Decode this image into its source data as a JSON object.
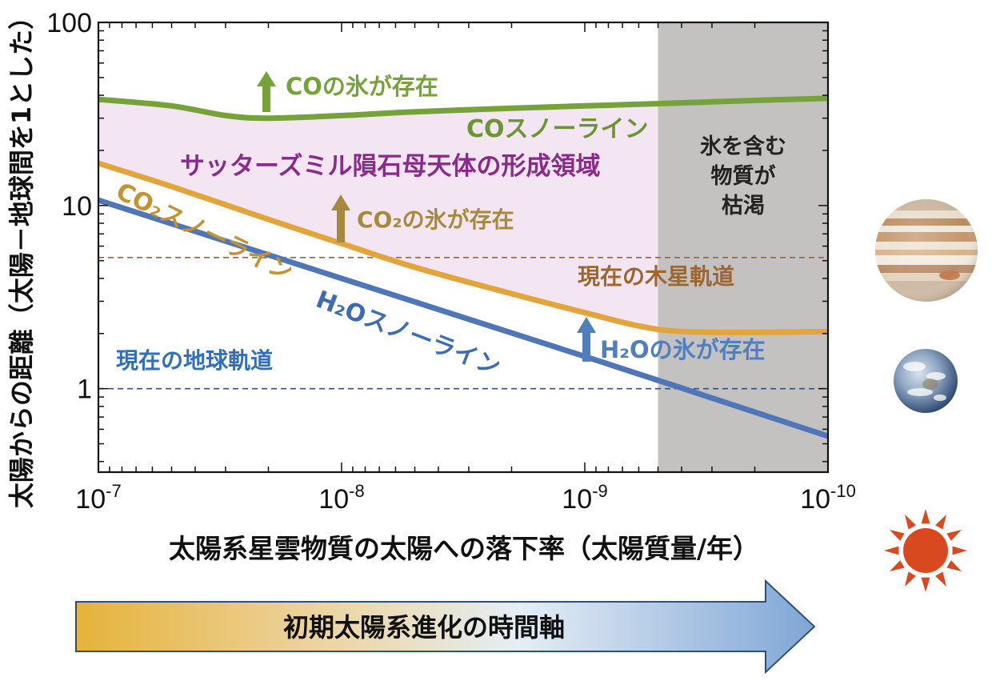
{
  "chart_data": {
    "type": "line",
    "title": "",
    "xlabel": "太陽系星雲物質の太陽への落下率（太陽質量/年）",
    "ylabel": "太陽からの距離（太陽－地球間を1とした）",
    "x_scale": "log",
    "y_scale": "log",
    "x_reversed": true,
    "xlim": [
      1e-07,
      1e-10
    ],
    "ylim": [
      0.35,
      100
    ],
    "x_ticks": [
      {
        "value": 1e-07,
        "base": "10",
        "exp": "-7"
      },
      {
        "value": 1e-08,
        "base": "10",
        "exp": "-8"
      },
      {
        "value": 1e-09,
        "base": "10",
        "exp": "-9"
      },
      {
        "value": 1e-10,
        "base": "10",
        "exp": "-10"
      }
    ],
    "y_ticks": [
      {
        "value": 1,
        "label": "1"
      },
      {
        "value": 10,
        "label": "10"
      },
      {
        "value": 100,
        "label": "100"
      }
    ],
    "series": [
      {
        "name": "COスノーライン",
        "color": "#76a23a",
        "points": [
          [
            1e-07,
            38
          ],
          [
            5e-08,
            35
          ],
          [
            3e-08,
            31
          ],
          [
            2e-08,
            30
          ],
          [
            1e-08,
            31
          ],
          [
            5e-09,
            32.5
          ],
          [
            2e-09,
            34
          ],
          [
            1e-09,
            35
          ],
          [
            5e-10,
            36
          ],
          [
            2e-10,
            37.5
          ],
          [
            1e-10,
            38.5
          ]
        ]
      },
      {
        "name": "CO₂スノーライン",
        "color": "#e3a43c",
        "points": [
          [
            1e-07,
            17
          ],
          [
            5e-08,
            12.7
          ],
          [
            2e-08,
            8.4
          ],
          [
            1e-08,
            6.2
          ],
          [
            5e-09,
            4.6
          ],
          [
            2e-09,
            3.3
          ],
          [
            1e-09,
            2.6
          ],
          [
            6e-10,
            2.2
          ],
          [
            4e-10,
            2.05
          ],
          [
            2e-10,
            2.03
          ],
          [
            1e-10,
            2.05
          ]
        ]
      },
      {
        "name": "H₂Oスノーライン",
        "color": "#4f76b8",
        "points": [
          [
            1e-07,
            10.7
          ],
          [
            1e-08,
            4.0
          ],
          [
            1e-09,
            1.5
          ],
          [
            1e-10,
            0.55
          ]
        ]
      }
    ],
    "reference_lines": [
      {
        "label": "現在の木星軌道",
        "y": 5.2,
        "color": "#9c6631",
        "style": "dashed"
      },
      {
        "label": "現在の地球軌道",
        "y": 1,
        "color": "#2f4f8f",
        "style": "dashed"
      }
    ],
    "shaded_regions": [
      {
        "label": "氷を含む物質が枯渇",
        "label_lines": [
          "氷を含む",
          "物質が",
          "枯渇"
        ],
        "x_range": [
          5e-10,
          1e-10
        ],
        "color": "#c4c1c1"
      },
      {
        "label": "サッターズミル隕石母天体の形成領域",
        "between": [
          "CO₂スノーライン",
          "COスノーライン"
        ],
        "color": "#f3e5f1"
      }
    ],
    "annotations": [
      {
        "text": "COの氷が存在",
        "color": "#76a23a",
        "arrow": true
      },
      {
        "text": "CO₂の氷が存在",
        "color": "#a58a3e",
        "arrow": true
      },
      {
        "text": "H₂Oの氷が存在",
        "color": "#4f7fbf",
        "arrow": true
      },
      {
        "text": "サッターズミル隕石母天体の形成領域",
        "color": "#8a2a8a"
      },
      {
        "text": "COスノーライン",
        "color": "#6b9533"
      },
      {
        "text": "CO₂スノーライン",
        "color": "#c4922e"
      },
      {
        "text": "H₂Oスノーライン",
        "color": "#3c6cb4"
      }
    ],
    "grid": false
  },
  "timeline": {
    "label": "初期太陽系進化の時間軸",
    "gradient_start": "#e6b33a",
    "gradient_end": "#7fa6d6"
  },
  "side_icons": [
    {
      "name": "jupiter-icon"
    },
    {
      "name": "earth-icon"
    },
    {
      "name": "sun-icon",
      "color": "#d9491f"
    }
  ]
}
